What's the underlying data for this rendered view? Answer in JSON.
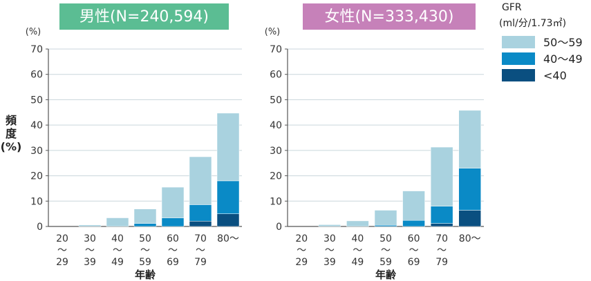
{
  "chart_data": [
    {
      "type": "bar",
      "stacked": true,
      "title": "男性(N=240,594)",
      "title_color": "#5bbd93",
      "ylabel": "頻度(%)",
      "y_unit": "(%)",
      "xlabel": "年齢",
      "ylim": [
        0,
        70
      ],
      "yticks": [
        0,
        10,
        20,
        30,
        40,
        50,
        60,
        70
      ],
      "grid": true,
      "categories": [
        [
          "20",
          "〜",
          "29"
        ],
        [
          "30",
          "〜",
          "39"
        ],
        [
          "40",
          "〜",
          "49"
        ],
        [
          "50",
          "〜",
          "59"
        ],
        [
          "60",
          "〜",
          "69"
        ],
        [
          "70",
          "〜",
          "79"
        ],
        [
          "80〜"
        ]
      ],
      "series": [
        {
          "name": "<40",
          "color": "#0a4f80",
          "values": [
            0,
            0,
            0,
            0,
            0,
            2.1,
            5.0
          ]
        },
        {
          "name": "40〜49",
          "color": "#0a8ac6",
          "values": [
            0,
            0,
            0,
            1.2,
            3.4,
            6.5,
            13.0
          ]
        },
        {
          "name": "50〜59",
          "color": "#a9d2df",
          "values": [
            0,
            0.6,
            3.4,
            5.7,
            12.1,
            18.9,
            26.7
          ]
        }
      ]
    },
    {
      "type": "bar",
      "stacked": true,
      "title": "女性(N=333,430)",
      "title_color": "#c681b9",
      "ylabel": "",
      "y_unit": "(%)",
      "xlabel": "年齢",
      "ylim": [
        0,
        70
      ],
      "yticks": [
        0,
        10,
        20,
        30,
        40,
        50,
        60,
        70
      ],
      "grid": true,
      "categories": [
        [
          "20",
          "〜",
          "29"
        ],
        [
          "30",
          "〜",
          "39"
        ],
        [
          "40",
          "〜",
          "49"
        ],
        [
          "50",
          "〜",
          "59"
        ],
        [
          "60",
          "〜",
          "69"
        ],
        [
          "70",
          "〜",
          "79"
        ],
        [
          "80〜"
        ]
      ],
      "series": [
        {
          "name": "<40",
          "color": "#0a4f80",
          "values": [
            0,
            0,
            0,
            0,
            0,
            1.2,
            6.4
          ]
        },
        {
          "name": "40〜49",
          "color": "#0a8ac6",
          "values": [
            0,
            0,
            0,
            0.5,
            2.4,
            6.8,
            16.6
          ]
        },
        {
          "name": "50〜59",
          "color": "#a9d2df",
          "values": [
            0,
            0.7,
            2.2,
            5.9,
            11.6,
            23.3,
            22.8
          ]
        }
      ]
    }
  ],
  "legend": {
    "title_line1": "GFR",
    "title_line2": "(ml/分/1.73㎡)",
    "items": [
      {
        "label": "50〜59",
        "color": "#a9d2df"
      },
      {
        "label": "40〜49",
        "color": "#0a8ac6"
      },
      {
        "label": "<40",
        "color": "#0a4f80"
      }
    ]
  }
}
